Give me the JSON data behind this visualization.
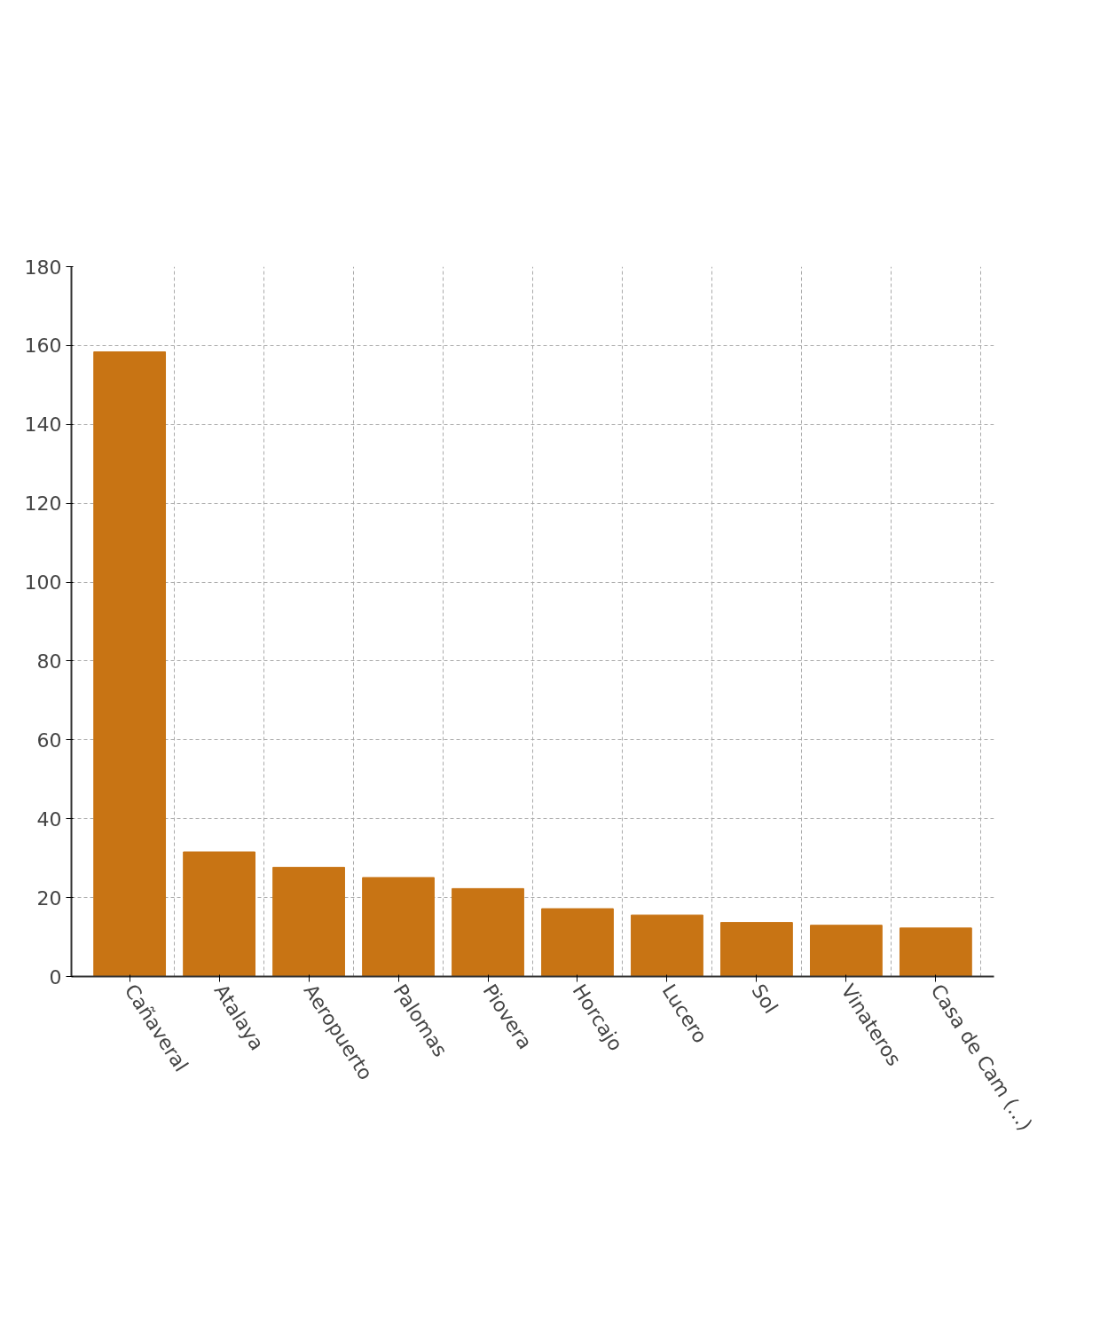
{
  "chart_data": {
    "type": "bar",
    "categories": [
      "Cañaveral",
      "Atalaya",
      "Aeropuerto",
      "Palomas",
      "Piovera",
      "Horcajo",
      "Lucero",
      "Sol",
      "Vinateros",
      "Casa de Cam (...)"
    ],
    "values": [
      158.4,
      31.6,
      27.7,
      25.1,
      22.3,
      17.2,
      15.6,
      13.7,
      13.0,
      12.3
    ],
    "color": "#c87414",
    "ylim": [
      0,
      180
    ],
    "yticks": [
      0,
      20,
      40,
      60,
      80,
      100,
      120,
      140,
      160,
      180
    ],
    "grid": true
  }
}
